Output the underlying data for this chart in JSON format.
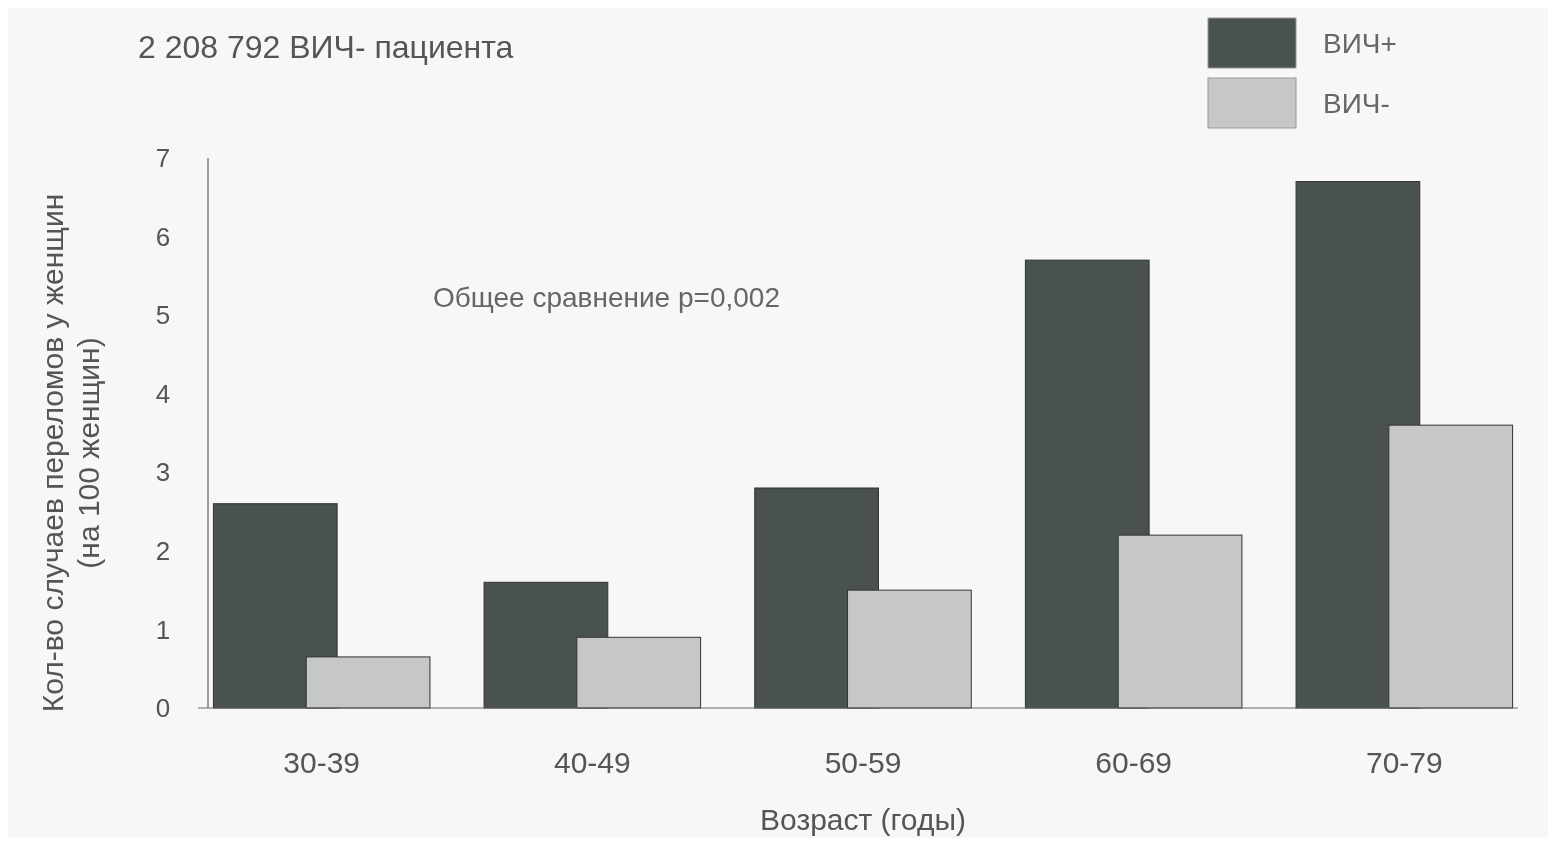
{
  "chart_data": {
    "type": "bar",
    "subtitle": "2 208 792 ВИЧ- пациента",
    "xlabel": "Возраст (годы)",
    "ylabel": "Кол-во случаев переломов у женщин\n(на 100 женщин)",
    "categories": [
      "30-39",
      "40-49",
      "50-59",
      "60-69",
      "70-79"
    ],
    "series": [
      {
        "name": "ВИЧ+",
        "color": "#4a5151",
        "values": [
          2.6,
          1.6,
          2.8,
          5.7,
          6.7
        ]
      },
      {
        "name": "ВИЧ-",
        "color": "#c5c7c9",
        "values": [
          0.65,
          0.9,
          1.5,
          2.2,
          3.6
        ]
      }
    ],
    "ylim": [
      0,
      7
    ],
    "yticks": [
      0,
      1,
      2,
      3,
      4,
      5,
      6,
      7
    ],
    "grid": false,
    "legend": "top right",
    "annotations": [
      "Общее сравнение p=0,002"
    ]
  }
}
